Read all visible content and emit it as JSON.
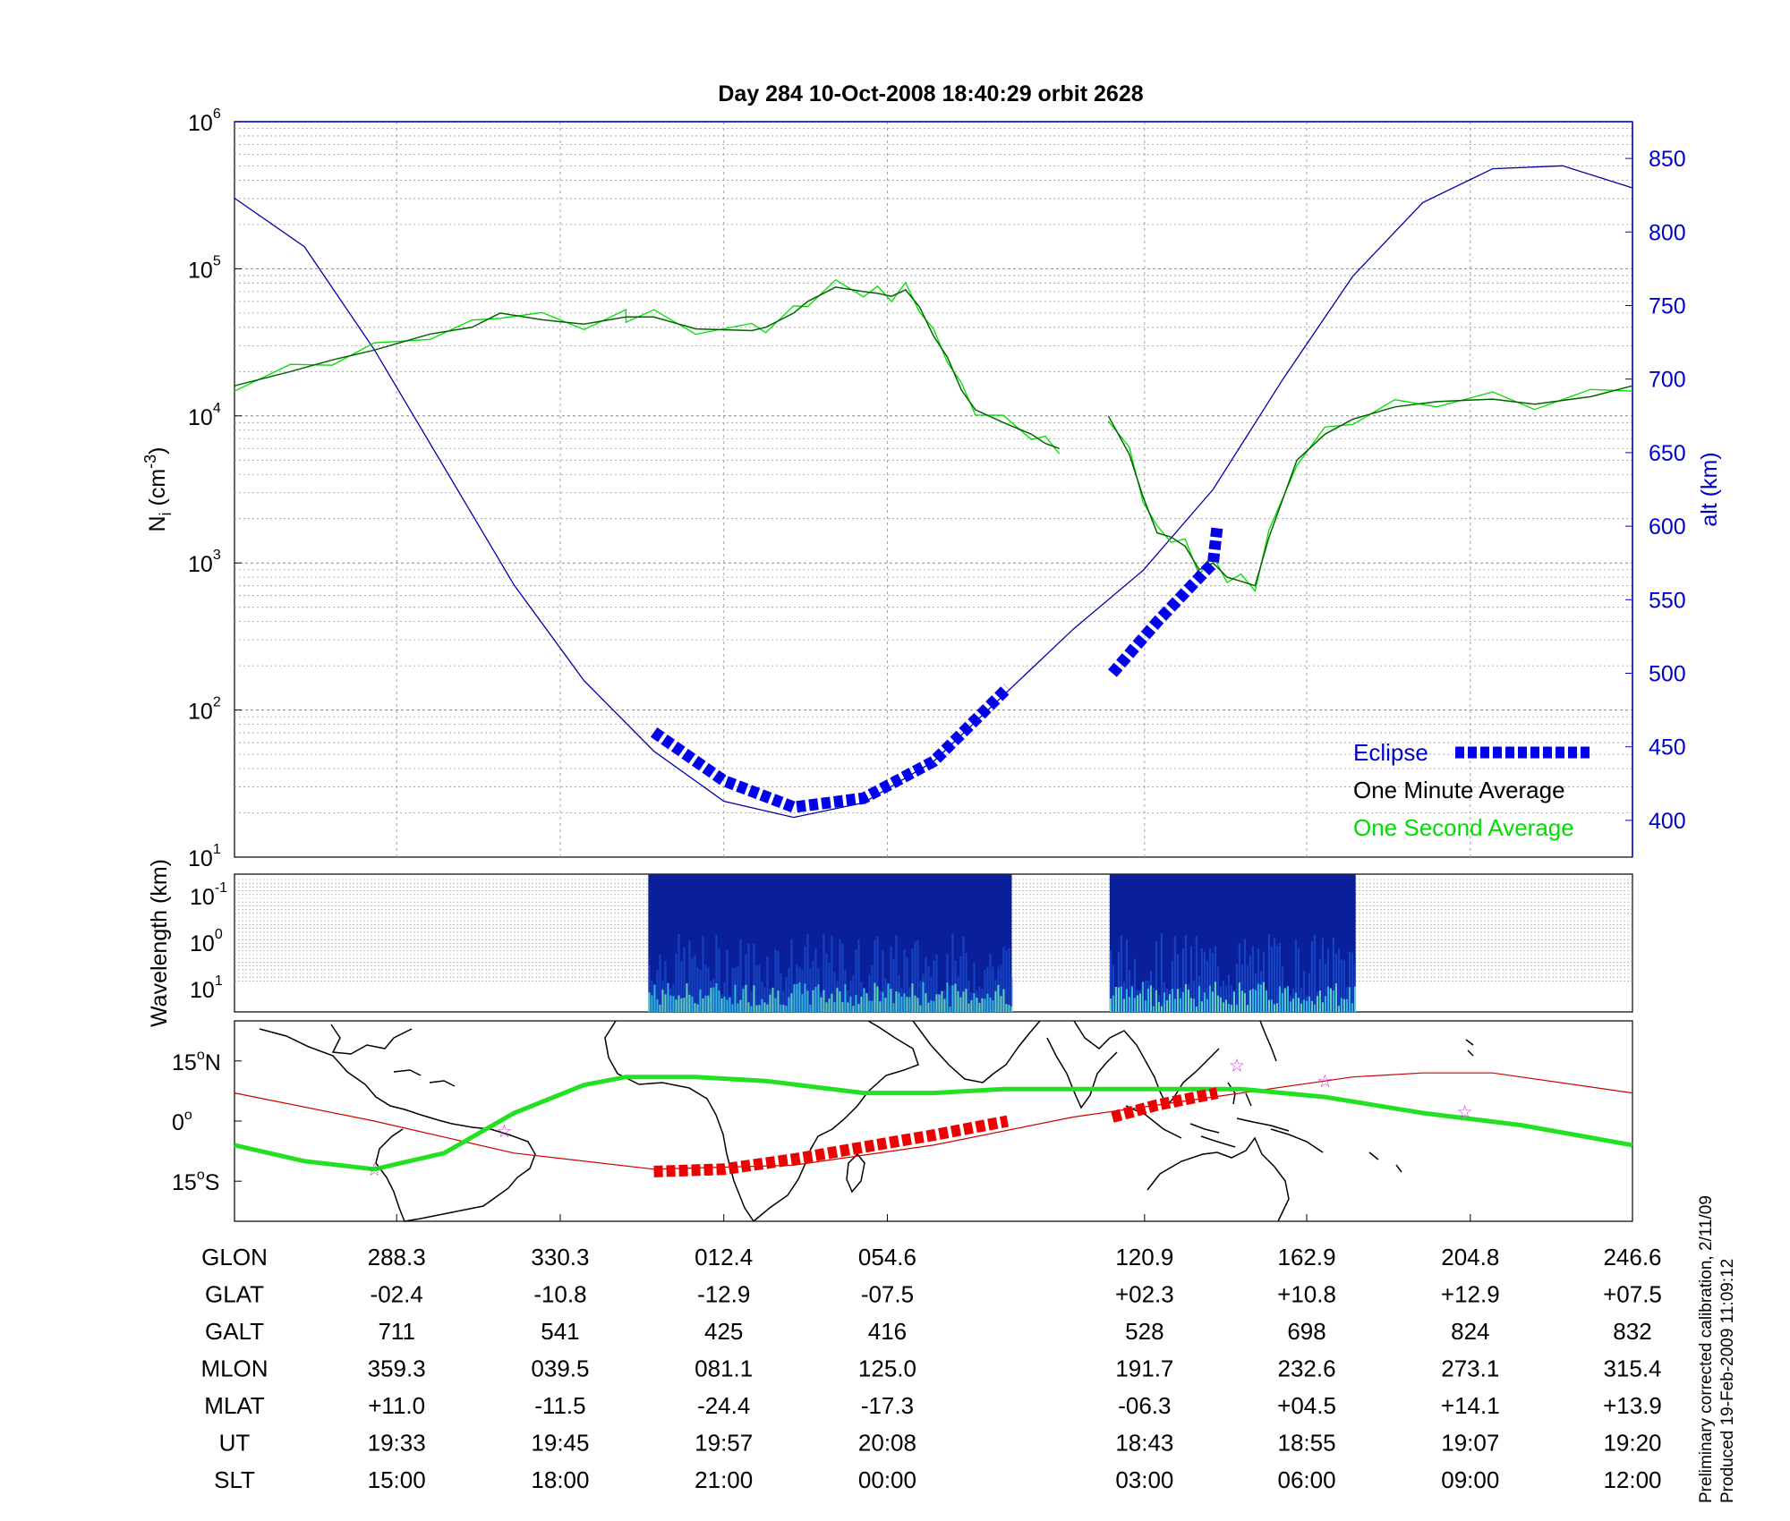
{
  "title": "Day 284  10-Oct-2008 18:40:29   orbit 2628",
  "side_notes": [
    "Preliminary corrected calibration, 2/11/09",
    "Produced 19-Feb-2009 11:09:12"
  ],
  "colors": {
    "ni_line": "#006400",
    "ni_fine": "#00dd00",
    "alt_line": "#0000aa",
    "eclipse": "#0000ee",
    "track_green": "#22e022",
    "track_red": "#cc0000",
    "track_eclipse": "#ee0000",
    "star": "#cc33cc",
    "axis_blue": "#0000cc"
  },
  "chart_data": [
    {
      "type": "line",
      "name": "density-altitude",
      "ylabel": "N_i (cm^-3)",
      "ylabel_base": "N",
      "ylabel_sub": "i",
      "ylabel_open": " (cm",
      "ylabel_sup": "-3",
      "ylabel_close": ")",
      "yscale": "log",
      "ylim": [
        10,
        1000000
      ],
      "yticks": [
        {
          "base": "10",
          "exp": "1"
        },
        {
          "base": "10",
          "exp": "2"
        },
        {
          "base": "10",
          "exp": "3"
        },
        {
          "base": "10",
          "exp": "4"
        },
        {
          "base": "10",
          "exp": "5"
        },
        {
          "base": "10",
          "exp": "6"
        }
      ],
      "y2label": "alt (km)",
      "y2lim": [
        375,
        875
      ],
      "y2ticks": [
        "400",
        "450",
        "500",
        "550",
        "600",
        "650",
        "700",
        "750",
        "800",
        "850"
      ],
      "x_fraction_range": [
        0,
        1
      ],
      "grid": true,
      "legend": [
        {
          "label": "Eclipse",
          "color": "#0000cc"
        },
        {
          "label": "One Minute Average",
          "color": "#000000"
        },
        {
          "label": "One Second Average",
          "color": "#00dd00"
        }
      ],
      "legend_position": "bottom-right",
      "series": [
        {
          "name": "One Minute Average",
          "axis": "left",
          "segments": [
            [
              [
                0.0,
                16000
              ],
              [
                0.04,
                20000
              ],
              [
                0.07,
                24000
              ],
              [
                0.1,
                28000
              ],
              [
                0.14,
                36000
              ],
              [
                0.17,
                40000
              ],
              [
                0.19,
                50000
              ],
              [
                0.22,
                45000
              ],
              [
                0.25,
                42000
              ],
              [
                0.28,
                47000
              ],
              [
                0.28,
                47000
              ],
              [
                0.3,
                47000
              ],
              [
                0.33,
                39000
              ],
              [
                0.37,
                38000
              ],
              [
                0.38,
                40000
              ],
              [
                0.4,
                50000
              ],
              [
                0.41,
                60000
              ],
              [
                0.43,
                75000
              ],
              [
                0.45,
                70000
              ],
              [
                0.46,
                68000
              ],
              [
                0.47,
                65000
              ],
              [
                0.48,
                72000
              ],
              [
                0.49,
                55000
              ],
              [
                0.5,
                35000
              ],
              [
                0.51,
                25000
              ],
              [
                0.52,
                15000
              ],
              [
                0.53,
                11000
              ],
              [
                0.55,
                9000
              ],
              [
                0.57,
                7500
              ],
              [
                0.58,
                6500
              ],
              [
                0.59,
                6000
              ],
              [
                0.55,
                9500
              ]
            ],
            [
              [
                0.625,
                10000
              ],
              [
                0.64,
                5500
              ],
              [
                0.65,
                2800
              ],
              [
                0.66,
                1600
              ],
              [
                0.67,
                1500
              ],
              [
                0.68,
                1300
              ],
              [
                0.69,
                900
              ],
              [
                0.7,
                1000
              ],
              [
                0.71,
                800
              ],
              [
                0.72,
                750
              ],
              [
                0.73,
                700
              ],
              [
                0.74,
                1500
              ],
              [
                0.76,
                5000
              ],
              [
                0.78,
                7500
              ],
              [
                0.8,
                9500
              ],
              [
                0.83,
                11500
              ],
              [
                0.86,
                12500
              ],
              [
                0.9,
                13000
              ],
              [
                0.93,
                12000
              ],
              [
                0.97,
                13500
              ],
              [
                1.0,
                16000
              ]
            ]
          ]
        },
        {
          "name": "Altitude",
          "axis": "right",
          "points": [
            [
              0.0,
              823
            ],
            [
              0.05,
              790
            ],
            [
              0.1,
              720
            ],
            [
              0.15,
              640
            ],
            [
              0.2,
              560
            ],
            [
              0.25,
              495
            ],
            [
              0.3,
              447
            ],
            [
              0.35,
              413
            ],
            [
              0.4,
              402
            ],
            [
              0.45,
              412
            ],
            [
              0.5,
              440
            ],
            [
              0.55,
              485
            ],
            [
              0.6,
              530
            ],
            [
              0.65,
              570
            ],
            [
              0.7,
              625
            ],
            [
              0.75,
              700
            ],
            [
              0.8,
              770
            ],
            [
              0.85,
              820
            ],
            [
              0.9,
              843
            ],
            [
              0.95,
              845
            ],
            [
              1.0,
              830
            ]
          ]
        },
        {
          "name": "Eclipse",
          "axis": "right",
          "segments": [
            [
              [
                0.3,
                460
              ],
              [
                0.35,
                427
              ],
              [
                0.4,
                409
              ],
              [
                0.45,
                415
              ],
              [
                0.5,
                440
              ],
              [
                0.553,
                490
              ]
            ],
            [
              [
                0.628,
                500
              ],
              [
                0.66,
                535
              ],
              [
                0.7,
                575
              ],
              [
                0.703,
                600
              ]
            ]
          ]
        }
      ]
    },
    {
      "type": "heatmap",
      "name": "wavelength-spectrogram",
      "ylabel": "Wavelength (km)",
      "yticks": [
        {
          "base": "10",
          "exp": "-1"
        },
        {
          "base": "10",
          "exp": "0"
        },
        {
          "base": "10",
          "exp": "1"
        }
      ],
      "blocks": [
        [
          0.296,
          0.556
        ],
        [
          0.626,
          0.802
        ]
      ]
    },
    {
      "type": "map",
      "name": "ground-track",
      "yticks": [
        {
          "deg": "15",
          "hemi": "N"
        },
        {
          "deg": "0",
          "hemi": ""
        },
        {
          "deg": "15",
          "hemi": "S"
        }
      ],
      "ylim": [
        -25,
        25
      ],
      "track": [
        [
          0.0,
          -6
        ],
        [
          0.05,
          -10
        ],
        [
          0.1,
          -12
        ],
        [
          0.15,
          -8
        ],
        [
          0.2,
          2
        ],
        [
          0.25,
          9
        ],
        [
          0.28,
          11
        ],
        [
          0.33,
          11
        ],
        [
          0.38,
          10
        ],
        [
          0.45,
          7
        ],
        [
          0.5,
          7
        ],
        [
          0.55,
          8
        ],
        [
          0.65,
          8
        ],
        [
          0.72,
          8
        ],
        [
          0.78,
          6
        ],
        [
          0.85,
          2
        ],
        [
          0.92,
          -1
        ],
        [
          1.0,
          -6
        ]
      ],
      "dipole": [
        [
          0.0,
          7
        ],
        [
          0.1,
          0
        ],
        [
          0.2,
          -8
        ],
        [
          0.3,
          -12
        ],
        [
          0.4,
          -11
        ],
        [
          0.5,
          -6
        ],
        [
          0.6,
          1
        ],
        [
          0.7,
          6
        ],
        [
          0.8,
          11
        ],
        [
          0.85,
          12
        ],
        [
          0.9,
          12
        ],
        [
          1.0,
          7
        ]
      ],
      "eclipse_track": [
        [
          [
            0.3,
            -12.6
          ],
          [
            0.35,
            -12
          ],
          [
            0.4,
            -9.5
          ],
          [
            0.45,
            -6.5
          ],
          [
            0.5,
            -3.5
          ],
          [
            0.553,
            0
          ]
        ],
        [
          [
            0.628,
            1
          ],
          [
            0.66,
            4
          ],
          [
            0.703,
            7
          ]
        ]
      ],
      "stars": [
        [
          0.1,
          -12
        ],
        [
          0.193,
          -2.4
        ],
        [
          0.717,
          14
        ],
        [
          0.78,
          10
        ],
        [
          0.88,
          2.3
        ]
      ]
    }
  ],
  "table": {
    "rows": [
      {
        "label": "GLON",
        "values": [
          "288.3",
          "330.3",
          "012.4",
          "054.6",
          "120.9",
          "162.9",
          "204.8",
          "246.6"
        ]
      },
      {
        "label": "GLAT",
        "values": [
          "-02.4",
          "-10.8",
          "-12.9",
          "-07.5",
          "+02.3",
          "+10.8",
          "+12.9",
          "+07.5"
        ]
      },
      {
        "label": "GALT",
        "values": [
          "711",
          "541",
          "425",
          "416",
          "528",
          "698",
          "824",
          "832"
        ]
      },
      {
        "label": "MLON",
        "values": [
          "359.3",
          "039.5",
          "081.1",
          "125.0",
          "191.7",
          "232.6",
          "273.1",
          "315.4"
        ]
      },
      {
        "label": "MLAT",
        "values": [
          "+11.0",
          "-11.5",
          "-24.4",
          "-17.3",
          "-06.3",
          "+04.5",
          "+14.1",
          "+13.9"
        ]
      },
      {
        "label": "UT",
        "values": [
          "19:33",
          "19:45",
          "19:57",
          "20:08",
          "18:43",
          "18:55",
          "19:07",
          "19:20"
        ]
      },
      {
        "label": "SLT",
        "values": [
          "15:00",
          "18:00",
          "21:00",
          "00:00",
          "03:00",
          "06:00",
          "09:00",
          "12:00"
        ]
      }
    ],
    "column_fractions": [
      0.116,
      0.233,
      0.35,
      0.467,
      0.651,
      0.767,
      0.884,
      1.0
    ]
  }
}
